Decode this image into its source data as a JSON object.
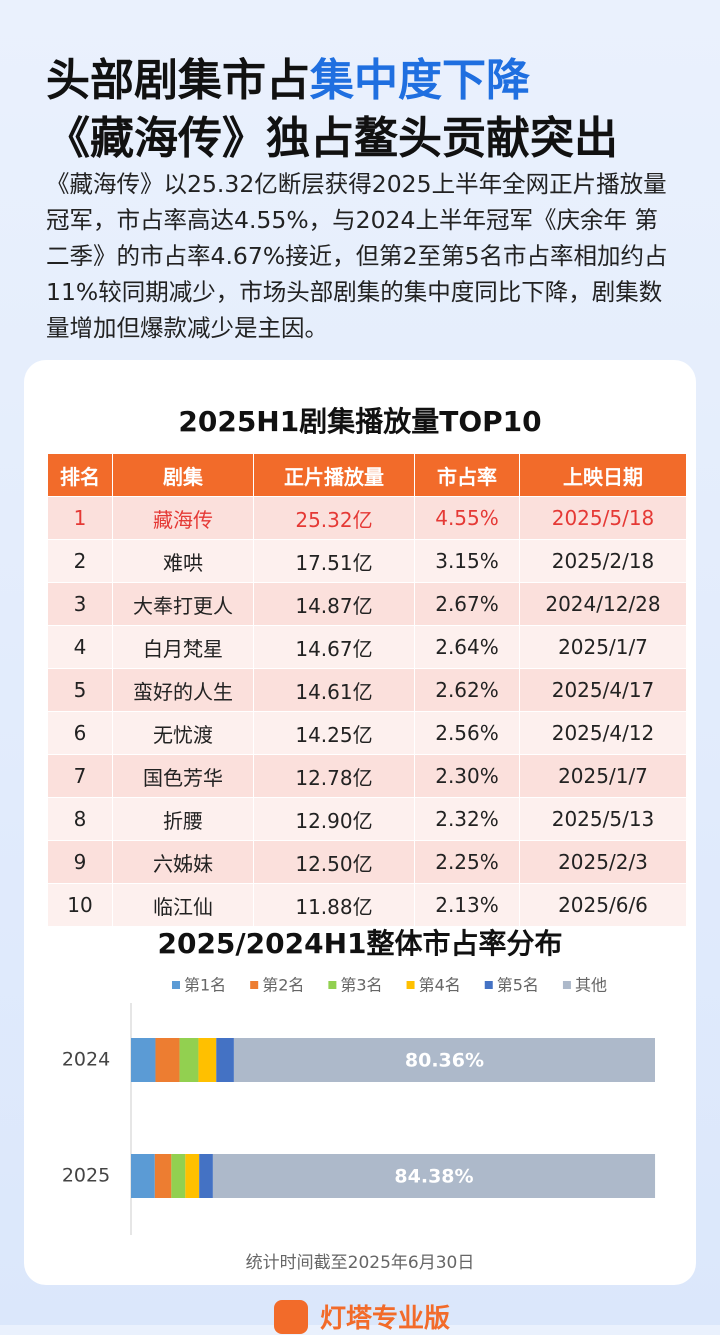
{
  "header": {
    "title_line1": [
      "头部剧集市占",
      "集中度下降"
    ],
    "title_line2": "《藏海传》独占鳌头贡献突出",
    "paragraph": "《藏海传》以25.32亿断层获得2025上半年全网正片播放量冠军，市占率高达4.55%，与2024上半年冠军《庆余年 第二季》的市占率4.67%接近，但第2至第5名市占率相加约占11%较同期减少，市场头部剧集的集中度同比下降，剧集数量增加但爆款减少是主因。"
  },
  "table": {
    "title": "2025H1剧集播放量TOP10",
    "columns": [
      "排名",
      "剧集",
      "正片播放量",
      "市占率",
      "上映日期"
    ],
    "rows": [
      [
        "1",
        "藏海传",
        "25.32亿",
        "4.55%",
        "2025/5/18"
      ],
      [
        "2",
        "难哄",
        "17.51亿",
        "3.15%",
        "2025/2/18"
      ],
      [
        "3",
        "大奉打更人",
        "14.87亿",
        "2.67%",
        "2024/12/28"
      ],
      [
        "4",
        "白月梵星",
        "14.67亿",
        "2.64%",
        "2025/1/7"
      ],
      [
        "5",
        "蛮好的人生",
        "14.61亿",
        "2.62%",
        "2025/4/17"
      ],
      [
        "6",
        "无忧渡",
        "14.25亿",
        "2.56%",
        "2025/4/12"
      ],
      [
        "7",
        "国色芳华",
        "12.78亿",
        "2.30%",
        "2025/1/7"
      ],
      [
        "8",
        "折腰",
        "12.90亿",
        "2.32%",
        "2025/5/13"
      ],
      [
        "9",
        "六姊妹",
        "12.50亿",
        "2.25%",
        "2025/2/3"
      ],
      [
        "10",
        "临江仙",
        "11.88亿",
        "2.13%",
        "2025/6/6"
      ]
    ]
  },
  "chart_data": {
    "type": "bar",
    "orientation": "horizontal",
    "stacked": true,
    "title": "2025/2024H1整体市占率分布",
    "categories": [
      "2024",
      "2025"
    ],
    "xlim": [
      0,
      100
    ],
    "series": [
      {
        "name": "第1名",
        "color": "#5b9bd5",
        "values": [
          4.67,
          4.55
        ]
      },
      {
        "name": "第2名",
        "color": "#ed7d31",
        "values": [
          4.6,
          3.15
        ]
      },
      {
        "name": "第3名",
        "color": "#92d050",
        "values": [
          3.6,
          2.67
        ]
      },
      {
        "name": "第4名",
        "color": "#ffc000",
        "values": [
          3.4,
          2.64
        ]
      },
      {
        "name": "第5名",
        "color": "#4472c4",
        "values": [
          3.37,
          2.62
        ]
      },
      {
        "name": "其他",
        "color": "#adb9ca",
        "values": [
          80.36,
          84.38
        ],
        "value_labels": [
          "80.36%",
          "84.38%"
        ]
      }
    ]
  },
  "footer": {
    "note": "统计时间截至2025年6月30日",
    "brand": "灯塔专业版"
  }
}
